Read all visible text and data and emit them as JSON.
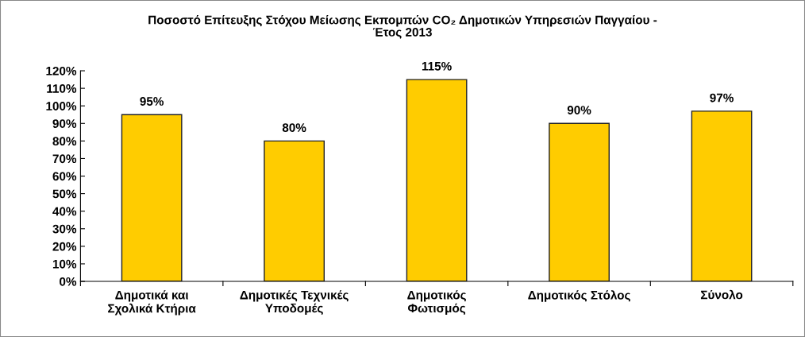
{
  "chart_data": {
    "type": "bar",
    "title": "Ποσοστό Επίτευξης Στόχου Μείωσης Εκπομπών CO₂ Δημοτικών Υπηρεσιών Παγγαίου -\nΈτος 2013",
    "categories": [
      "Δημοτικά και\nΣχολικά Κτήρια",
      "Δημοτικές Τεχνικές\nΥποδομές",
      "Δημοτικός\nΦωτισμός",
      "Δημοτικός Στόλος",
      "Σύνολο"
    ],
    "values": [
      95,
      80,
      115,
      90,
      97
    ],
    "value_labels": [
      "95%",
      "80%",
      "115%",
      "90%",
      "97%"
    ],
    "color": "#ffcc00",
    "ylim": [
      0,
      120
    ],
    "yticks": [
      {
        "value": 0,
        "label": "0%"
      },
      {
        "value": 10,
        "label": "10%"
      },
      {
        "value": 20,
        "label": "20%"
      },
      {
        "value": 30,
        "label": "30%"
      },
      {
        "value": 40,
        "label": "40%"
      },
      {
        "value": 50,
        "label": "50%"
      },
      {
        "value": 60,
        "label": "60%"
      },
      {
        "value": 70,
        "label": "70%"
      },
      {
        "value": 80,
        "label": "80%"
      },
      {
        "value": 90,
        "label": "90%"
      },
      {
        "value": 100,
        "label": "100%"
      },
      {
        "value": 110,
        "label": "110%"
      },
      {
        "value": 120,
        "label": "120%"
      }
    ],
    "grid": false
  }
}
